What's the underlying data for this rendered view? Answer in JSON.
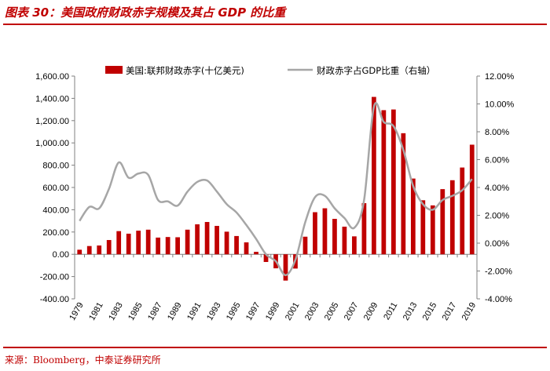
{
  "figure": {
    "title": "图表 30：美国政府财政赤字规模及其占 GDP 的比重",
    "source": "来源：Bloomberg，中泰证券研究所"
  },
  "colors": {
    "accent": "#c00000",
    "bar": "#c00000",
    "line": "#a6a6a6"
  },
  "chart_data": {
    "type": "bar",
    "title": "",
    "xlabel": "",
    "ylabel": "",
    "y2label": "",
    "grid": false,
    "legend_position": "top",
    "categories": [
      "1979",
      "1980",
      "1981",
      "1982",
      "1983",
      "1984",
      "1985",
      "1986",
      "1987",
      "1988",
      "1989",
      "1990",
      "1991",
      "1992",
      "1993",
      "1994",
      "1995",
      "1996",
      "1997",
      "1998",
      "1999",
      "2000",
      "2001",
      "2002",
      "2003",
      "2004",
      "2005",
      "2006",
      "2007",
      "2008",
      "2009",
      "2010",
      "2011",
      "2012",
      "2013",
      "2014",
      "2015",
      "2016",
      "2017",
      "2018",
      "2019"
    ],
    "x_tick_labels": [
      "1979",
      "1981",
      "1983",
      "1985",
      "1987",
      "1989",
      "1991",
      "1993",
      "1995",
      "1997",
      "1999",
      "2001",
      "2003",
      "2005",
      "2007",
      "2009",
      "2011",
      "2013",
      "2015",
      "2017",
      "2019"
    ],
    "ylim": [
      -400,
      1600
    ],
    "y_ticks": [
      "-400.00",
      "-200.00",
      "0.00",
      "200.00",
      "400.00",
      "600.00",
      "800.00",
      "1,000.00",
      "1,200.00",
      "1,400.00",
      "1,600.00"
    ],
    "y2lim": [
      -4,
      12
    ],
    "y2_ticks": [
      "-4.00%",
      "-2.00%",
      "0.00%",
      "2.00%",
      "4.00%",
      "6.00%",
      "8.00%",
      "10.00%",
      "12.00%"
    ],
    "series": [
      {
        "name": "美国:联邦财政赤字(十亿美元)",
        "type": "bar",
        "axis": "left",
        "values": [
          41,
          74,
          79,
          128,
          208,
          185,
          212,
          221,
          150,
          155,
          153,
          221,
          269,
          290,
          255,
          203,
          164,
          107,
          22,
          -69,
          -126,
          -236,
          -128,
          158,
          378,
          413,
          318,
          248,
          161,
          459,
          1413,
          1294,
          1300,
          1087,
          680,
          485,
          439,
          585,
          665,
          779,
          984
        ]
      },
      {
        "name": "财政赤字占GDP比重（右轴）",
        "type": "line",
        "axis": "right",
        "values": [
          1.6,
          2.6,
          2.5,
          3.9,
          5.8,
          4.7,
          5.0,
          4.9,
          3.1,
          3.0,
          2.7,
          3.7,
          4.4,
          4.5,
          3.7,
          2.8,
          2.2,
          1.3,
          0.3,
          -0.8,
          -1.3,
          -2.3,
          -1.2,
          1.5,
          3.3,
          3.4,
          2.5,
          1.8,
          1.1,
          3.1,
          9.8,
          8.7,
          8.4,
          6.7,
          4.1,
          2.8,
          2.4,
          3.1,
          3.4,
          3.8,
          4.6
        ]
      }
    ]
  }
}
